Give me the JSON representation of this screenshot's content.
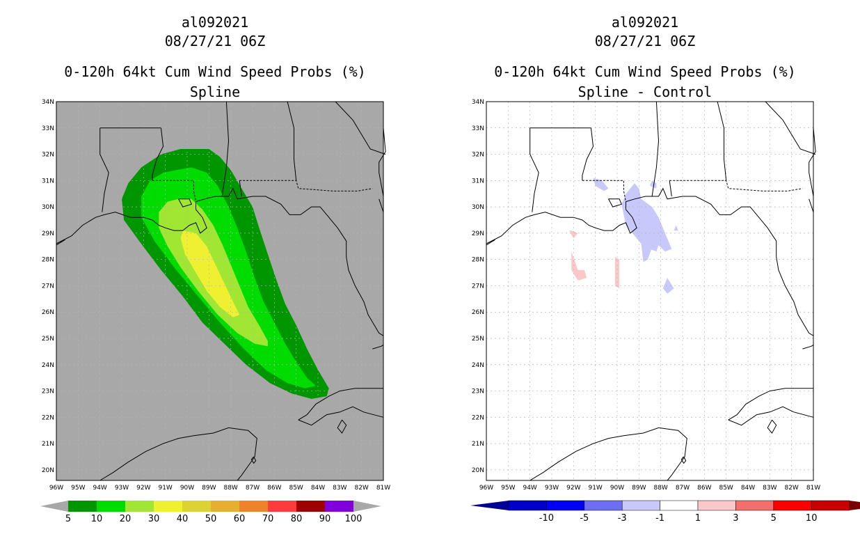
{
  "panels": [
    {
      "storm_id": "al092021",
      "datetime": "08/27/21 06Z",
      "product": "0-120h 64kt Cum Wind Speed Probs (%)",
      "subtitle": "Spline",
      "background_color": "#a8a8a8",
      "colorbar": {
        "labels": [
          "5",
          "10",
          "20",
          "30",
          "40",
          "50",
          "60",
          "70",
          "80",
          "90",
          "100"
        ],
        "colors": [
          "#009600",
          "#00dc00",
          "#a0e632",
          "#f0f032",
          "#dcd232",
          "#e6af2d",
          "#f08228",
          "#fa3c3c",
          "#a00000",
          "#8200dc"
        ],
        "end_color": "#a8a8a8"
      }
    },
    {
      "storm_id": "al092021",
      "datetime": "08/27/21 06Z",
      "product": "0-120h 64kt Cum Wind Speed Probs (%)",
      "subtitle": "Spline - Control",
      "background_color": "#ffffff",
      "colorbar": {
        "labels": [
          "-10",
          "-5",
          "-3",
          "-1",
          "1",
          "3",
          "5",
          "10"
        ],
        "colors": [
          "#0000c8",
          "#0000f5",
          "#6e6ef5",
          "#c8c8fa",
          "#ffffff",
          "#fac8c8",
          "#f56e6e",
          "#fa0000",
          "#c80000"
        ],
        "left_end_color": "#000096",
        "right_end_color": "#780000"
      }
    }
  ],
  "axes": {
    "lat_labels": [
      "20N",
      "21N",
      "22N",
      "23N",
      "24N",
      "25N",
      "26N",
      "27N",
      "28N",
      "29N",
      "30N",
      "31N",
      "32N",
      "33N",
      "34N"
    ],
    "lon_labels": [
      "96W",
      "95W",
      "94W",
      "93W",
      "92W",
      "91W",
      "90W",
      "89W",
      "88W",
      "87W",
      "86W",
      "85W",
      "84W",
      "83W",
      "82W",
      "81W"
    ],
    "lat_range": [
      19.6,
      34.0
    ],
    "lon_range": [
      -96.0,
      -81.0
    ]
  },
  "left_field": {
    "colors": {
      "5": "#009600",
      "10": "#00dc00",
      "20": "#a0e632",
      "30": "#f0f032"
    },
    "contours": {
      "5": [
        [
          -89.7,
          32.2
        ],
        [
          -89.0,
          32.2
        ],
        [
          -88.5,
          31.9
        ],
        [
          -88.0,
          31.4
        ],
        [
          -87.5,
          30.7
        ],
        [
          -87.0,
          30.0
        ],
        [
          -86.7,
          29.2
        ],
        [
          -86.3,
          28.2
        ],
        [
          -85.9,
          27.2
        ],
        [
          -85.5,
          26.3
        ],
        [
          -85.0,
          25.5
        ],
        [
          -84.5,
          24.6
        ],
        [
          -84.0,
          23.8
        ],
        [
          -83.5,
          23.1
        ],
        [
          -83.6,
          22.8
        ],
        [
          -84.3,
          22.7
        ],
        [
          -85.2,
          22.9
        ],
        [
          -86.2,
          23.3
        ],
        [
          -87.3,
          24.0
        ],
        [
          -88.3,
          24.8
        ],
        [
          -89.3,
          25.6
        ],
        [
          -90.2,
          26.6
        ],
        [
          -91.2,
          27.6
        ],
        [
          -92.2,
          28.7
        ],
        [
          -92.9,
          29.5
        ],
        [
          -93.0,
          30.3
        ],
        [
          -92.7,
          30.9
        ],
        [
          -92.1,
          31.5
        ],
        [
          -91.2,
          32.0
        ],
        [
          -90.3,
          32.2
        ]
      ],
      "10": [
        [
          -90.5,
          31.4
        ],
        [
          -89.8,
          31.5
        ],
        [
          -89.1,
          31.3
        ],
        [
          -88.6,
          30.8
        ],
        [
          -88.1,
          30.0
        ],
        [
          -87.7,
          29.2
        ],
        [
          -87.3,
          28.3
        ],
        [
          -86.9,
          27.3
        ],
        [
          -86.5,
          26.4
        ],
        [
          -86.0,
          25.6
        ],
        [
          -85.5,
          24.8
        ],
        [
          -85.0,
          24.1
        ],
        [
          -84.5,
          23.5
        ],
        [
          -84.1,
          23.2
        ],
        [
          -84.6,
          23.1
        ],
        [
          -85.4,
          23.3
        ],
        [
          -86.4,
          23.8
        ],
        [
          -87.4,
          24.6
        ],
        [
          -88.5,
          25.6
        ],
        [
          -89.6,
          26.7
        ],
        [
          -90.6,
          27.7
        ],
        [
          -91.5,
          28.7
        ],
        [
          -92.1,
          29.6
        ],
        [
          -92.1,
          30.4
        ],
        [
          -91.7,
          31.0
        ],
        [
          -91.1,
          31.3
        ]
      ],
      "20": [
        [
          -90.4,
          30.3
        ],
        [
          -89.8,
          30.3
        ],
        [
          -89.3,
          29.9
        ],
        [
          -88.8,
          29.3
        ],
        [
          -88.4,
          28.6
        ],
        [
          -88.0,
          27.8
        ],
        [
          -87.6,
          27.0
        ],
        [
          -87.2,
          26.2
        ],
        [
          -86.7,
          25.5
        ],
        [
          -86.3,
          24.9
        ],
        [
          -86.3,
          24.7
        ],
        [
          -86.9,
          24.8
        ],
        [
          -87.7,
          25.2
        ],
        [
          -88.6,
          25.9
        ],
        [
          -89.5,
          26.8
        ],
        [
          -90.3,
          27.7
        ],
        [
          -90.9,
          28.5
        ],
        [
          -91.3,
          29.2
        ],
        [
          -91.3,
          29.8
        ],
        [
          -90.9,
          30.2
        ]
      ],
      "30": [
        [
          -90.2,
          29.1
        ],
        [
          -89.6,
          29.0
        ],
        [
          -89.1,
          28.5
        ],
        [
          -88.7,
          27.8
        ],
        [
          -88.3,
          27.1
        ],
        [
          -87.9,
          26.4
        ],
        [
          -87.6,
          25.9
        ],
        [
          -87.9,
          25.8
        ],
        [
          -88.5,
          26.2
        ],
        [
          -89.1,
          26.8
        ],
        [
          -89.6,
          27.5
        ],
        [
          -90.1,
          28.2
        ],
        [
          -90.3,
          28.8
        ]
      ]
    }
  },
  "right_field": {
    "neg_color": "#c8c8fa",
    "pos_color": "#fac8c8",
    "neg_patches": [
      [
        [
          -91.1,
          31.1
        ],
        [
          -90.7,
          31.0
        ],
        [
          -90.4,
          30.7
        ],
        [
          -90.6,
          30.6
        ],
        [
          -91.0,
          30.8
        ]
      ],
      [
        [
          -89.2,
          30.9
        ],
        [
          -89.0,
          30.7
        ],
        [
          -88.9,
          30.3
        ],
        [
          -88.4,
          30.0
        ],
        [
          -88.1,
          29.6
        ],
        [
          -87.8,
          29.0
        ],
        [
          -87.5,
          28.4
        ],
        [
          -87.8,
          28.3
        ],
        [
          -88.3,
          28.7
        ],
        [
          -88.6,
          28.0
        ],
        [
          -88.8,
          27.9
        ],
        [
          -88.9,
          28.6
        ],
        [
          -89.3,
          29.0
        ],
        [
          -89.6,
          29.3
        ],
        [
          -89.7,
          29.7
        ],
        [
          -89.8,
          30.1
        ],
        [
          -89.6,
          30.5
        ]
      ],
      [
        [
          -88.3,
          29.7
        ],
        [
          -88.1,
          29.5
        ],
        [
          -88.0,
          28.8
        ],
        [
          -88.2,
          28.3
        ],
        [
          -88.5,
          28.4
        ]
      ],
      [
        [
          -88.4,
          31.0
        ],
        [
          -88.2,
          30.9
        ],
        [
          -88.2,
          30.7
        ],
        [
          -88.5,
          30.8
        ]
      ],
      [
        [
          -87.9,
          26.9
        ],
        [
          -87.7,
          26.7
        ],
        [
          -87.4,
          26.9
        ],
        [
          -87.7,
          27.3
        ]
      ],
      [
        [
          -87.3,
          29.3
        ],
        [
          -87.2,
          29.1
        ],
        [
          -87.4,
          29.1
        ]
      ]
    ],
    "pos_patches": [
      [
        [
          -92.2,
          29.1
        ],
        [
          -92.0,
          28.8
        ],
        [
          -91.8,
          29.0
        ],
        [
          -92.1,
          29.1
        ]
      ],
      [
        [
          -92.1,
          28.3
        ],
        [
          -91.8,
          27.6
        ],
        [
          -91.5,
          27.6
        ],
        [
          -91.4,
          27.3
        ],
        [
          -91.8,
          27.2
        ],
        [
          -92.1,
          27.6
        ]
      ],
      [
        [
          -90.1,
          28.1
        ],
        [
          -89.9,
          28.0
        ],
        [
          -89.9,
          26.9
        ],
        [
          -90.1,
          27.0
        ]
      ]
    ]
  }
}
